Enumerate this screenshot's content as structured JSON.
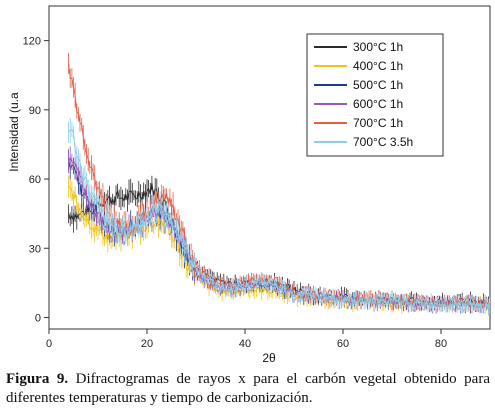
{
  "chart_data": {
    "type": "line",
    "xlabel": "2θ",
    "ylabel": "Intensidad (u.a",
    "xlim": [
      0,
      90
    ],
    "ylim": [
      -5,
      135
    ],
    "xticks": [
      0,
      20,
      40,
      60,
      80
    ],
    "yticks": [
      0,
      30,
      60,
      90,
      120
    ],
    "grid": false,
    "legend_position": "top-right",
    "series": [
      {
        "name": "300°C 1h",
        "color": "#2b2b2b",
        "x": [
          4,
          6,
          8,
          10,
          12,
          14,
          16,
          18,
          20,
          21,
          22,
          24,
          26,
          28,
          30,
          32,
          34,
          36,
          38,
          40,
          42,
          44,
          46,
          48,
          50,
          55,
          60,
          65,
          70,
          75,
          80,
          85,
          90
        ],
        "y": [
          45,
          44,
          47,
          50,
          51,
          52,
          52,
          53,
          55,
          56,
          54,
          48,
          38,
          28,
          22,
          18,
          16,
          15,
          15,
          15,
          15,
          16,
          15,
          14,
          12,
          10,
          9,
          8,
          8,
          7,
          7,
          7,
          6
        ]
      },
      {
        "name": "400°C 1h",
        "color": "#f0c419",
        "x": [
          4,
          5,
          6,
          8,
          10,
          12,
          14,
          16,
          18,
          20,
          22,
          24,
          26,
          28,
          30,
          32,
          34,
          36,
          38,
          40,
          42,
          44,
          46,
          48,
          50,
          55,
          60,
          65,
          70,
          75,
          80,
          85,
          90
        ],
        "y": [
          55,
          53,
          48,
          42,
          38,
          35,
          35,
          36,
          38,
          40,
          42,
          40,
          32,
          24,
          18,
          14,
          12,
          11,
          11,
          12,
          12,
          12,
          11,
          10,
          9,
          8,
          7,
          7,
          6,
          6,
          6,
          6,
          5
        ]
      },
      {
        "name": "500°C 1h",
        "color": "#1f3a8a",
        "x": [
          4,
          5,
          6,
          8,
          10,
          12,
          14,
          16,
          18,
          20,
          22,
          24,
          26,
          28,
          30,
          32,
          34,
          36,
          38,
          40,
          42,
          44,
          46,
          48,
          50,
          55,
          60,
          65,
          70,
          75,
          80,
          85,
          90
        ],
        "y": [
          65,
          64,
          58,
          50,
          44,
          40,
          38,
          39,
          41,
          44,
          46,
          44,
          36,
          27,
          20,
          16,
          14,
          13,
          13,
          14,
          14,
          14,
          13,
          12,
          10,
          9,
          8,
          7,
          7,
          6,
          6,
          6,
          5
        ]
      },
      {
        "name": "600°C 1h",
        "color": "#9b59b6",
        "x": [
          4,
          5,
          6,
          8,
          10,
          12,
          14,
          16,
          18,
          20,
          22,
          24,
          26,
          28,
          30,
          32,
          34,
          36,
          38,
          40,
          42,
          44,
          46,
          48,
          50,
          55,
          60,
          65,
          70,
          75,
          80,
          85,
          90
        ],
        "y": [
          70,
          68,
          62,
          52,
          44,
          39,
          37,
          38,
          40,
          43,
          47,
          46,
          38,
          28,
          21,
          16,
          14,
          13,
          13,
          14,
          15,
          15,
          14,
          12,
          10,
          9,
          8,
          7,
          7,
          6,
          6,
          6,
          5
        ]
      },
      {
        "name": "700°C 1h",
        "color": "#e0604a",
        "x": [
          4,
          5,
          6,
          8,
          10,
          12,
          14,
          16,
          18,
          20,
          22,
          24,
          26,
          28,
          30,
          32,
          34,
          36,
          38,
          40,
          42,
          44,
          46,
          48,
          50,
          55,
          60,
          65,
          70,
          75,
          80,
          85,
          90
        ],
        "y": [
          108,
          100,
          88,
          70,
          55,
          45,
          40,
          40,
          42,
          45,
          50,
          52,
          44,
          32,
          23,
          18,
          15,
          14,
          14,
          15,
          17,
          17,
          15,
          13,
          11,
          9,
          8,
          8,
          7,
          7,
          6,
          6,
          6
        ]
      },
      {
        "name": "700°C 3.5h",
        "color": "#8ecde8",
        "x": [
          4,
          5,
          6,
          8,
          10,
          12,
          14,
          16,
          18,
          20,
          22,
          24,
          26,
          28,
          30,
          32,
          34,
          36,
          38,
          40,
          42,
          44,
          46,
          48,
          50,
          55,
          60,
          65,
          70,
          75,
          80,
          85,
          90
        ],
        "y": [
          82,
          78,
          68,
          56,
          47,
          41,
          38,
          38,
          40,
          43,
          47,
          46,
          38,
          29,
          21,
          17,
          14,
          13,
          13,
          14,
          15,
          15,
          14,
          12,
          10,
          9,
          8,
          7,
          7,
          6,
          6,
          6,
          5
        ]
      }
    ]
  },
  "caption": {
    "label": "Figura 9.",
    "text": " Difractogramas de rayos x para el carbón vegetal obtenido para diferentes temperaturas y tiempo de carbonización."
  }
}
